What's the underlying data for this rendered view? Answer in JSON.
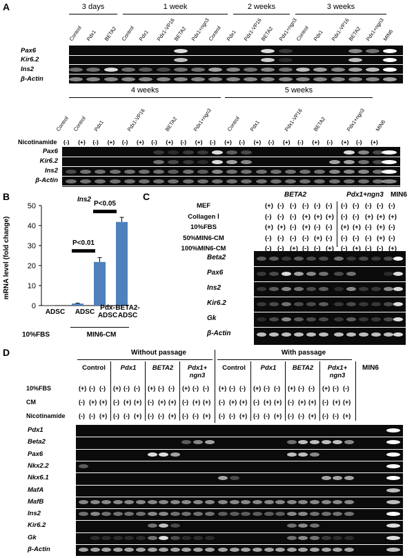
{
  "panelA": {
    "label": "A",
    "top": {
      "groups": [
        "3 days",
        "1 week",
        "2 weeks",
        "3 weeks"
      ],
      "lanes": [
        "Control",
        "Pdx1",
        "BETA2",
        "Control",
        "Pdx1",
        "Pdx1-VP16",
        "BETA2",
        "Pdx1+ngn3",
        "Control",
        "Pdx1",
        "Pdx1-VP16",
        "BETA2",
        "Pdx1+ngn3",
        "Control",
        "Pdx1",
        "Pdx1-VP16",
        "BETA2",
        "Pdx1+ngn3",
        "MIN6"
      ],
      "genes": [
        "Pax6",
        "Kir6.2",
        "Ins2",
        "β-Actin"
      ]
    },
    "bottom": {
      "groups": [
        "4 weeks",
        "5 weeks"
      ],
      "lanes": [
        "Control",
        "Control",
        "Pdx1",
        "Pdx1-VP16",
        "BETA2",
        "Pdx1+ngn3",
        "Control",
        "Pdx1",
        "Pdx1-VP16",
        "BETA2",
        "Pdx1+ngn3",
        "MIN6"
      ],
      "nicotinamide_label": "Nicotinamide",
      "nicotinamide": [
        "(-)",
        "(+)",
        "(-)",
        "(+)",
        "(-)",
        "(+)",
        "(-)",
        "(+)",
        "(-)",
        "(+)",
        "(-)",
        "(+)",
        "(-)",
        "(+)",
        "(-)",
        "(+)",
        "(-)",
        "(+)",
        "(-)",
        "(+)",
        "(-)",
        "(+)"
      ],
      "genes": [
        "Pax6",
        "Kir6.2",
        "Ins2",
        "β-Actin"
      ]
    }
  },
  "panelB": {
    "label": "B",
    "chart_data": {
      "type": "bar",
      "title": "Ins2",
      "ylabel": "mRNA level (fold change)",
      "categories": [
        "ADSC",
        "ADSC",
        "Pdx-ADSC",
        "BETA2-ADSC"
      ],
      "values": [
        0.1,
        1.0,
        21.8,
        41.8
      ],
      "errors": [
        0,
        0.2,
        2.2,
        2.3
      ],
      "ylim": [
        0,
        50
      ],
      "yticks": [
        "0",
        "10",
        "20",
        "30",
        "40",
        "50"
      ],
      "condition_labels": [
        "10%FBS",
        "MIN6-CM"
      ],
      "annotations": [
        "P<0.01",
        "P<0.05"
      ],
      "bar_color": "#4f81bd"
    }
  },
  "panelC": {
    "label": "C",
    "groups": [
      "BETA2",
      "Pdx1+ngn3",
      "MIN6"
    ],
    "rows": [
      {
        "label": "MEF",
        "signs": [
          "(+)",
          "(-)",
          "(-)",
          "(-)",
          "(-)",
          "(-)",
          "(-)",
          "(-)",
          "(-)",
          "(-)",
          "(-)",
          "(-)"
        ]
      },
      {
        "label": "Collagen Ⅰ",
        "signs": [
          "(-)",
          "(-)",
          "(-)",
          "(+)",
          "(+)",
          "(+)",
          "(-)",
          "(-)",
          "(+)",
          "(+)",
          "(+)",
          "(-)"
        ]
      },
      {
        "label": "10%FBS",
        "signs": [
          "(+)",
          "(+)",
          "(-)",
          "(+)",
          "(-)",
          "(-)",
          "(+)",
          "(+)",
          "(-)",
          "(+)",
          "(-)",
          "(-)"
        ]
      },
      {
        "label": "50%MIN6-CM",
        "signs": [
          "(-)",
          "(-)",
          "(-)",
          "(-)",
          "(+)",
          "(-)",
          "(-)",
          "(-)",
          "(-)",
          "(+)",
          "(-)",
          "(-)"
        ]
      },
      {
        "label": "100%MIN6-CM",
        "signs": [
          "(-)",
          "(-)",
          "(+)",
          "(-)",
          "(-)",
          "(+)",
          "(-)",
          "(+)",
          "(-)",
          "(-)",
          "(+)",
          "(-)"
        ]
      }
    ],
    "genes": [
      "Beta2",
      "Pax6",
      "Ins2",
      "Kir6.2",
      "Gk",
      "β-Actin"
    ]
  },
  "panelD": {
    "label": "D",
    "sections": [
      "Without passage",
      "With passage"
    ],
    "groups": [
      "Control",
      "Pdx1",
      "BETA2",
      "Pdx1+ ngn3",
      "Control",
      "Pdx1",
      "BETA2",
      "Pdx1+ ngn3"
    ],
    "min6": "MIN6",
    "rows": [
      {
        "label": "10%FBS",
        "sign_a": "(+)",
        "sign_b": "(-)",
        "sign_c": "(-)"
      },
      {
        "label": "CM",
        "sign_a": "(-)",
        "sign_b": "(+)",
        "sign_c": "(+)"
      },
      {
        "label": "Nicotinamide",
        "sign_a": "(-)",
        "sign_b": "(-)",
        "sign_c": "(+)"
      }
    ],
    "genes": [
      "Pdx1",
      "Beta2",
      "Pax6",
      "Nkx2.2",
      "Nkx6.1",
      "MafA",
      "MafB",
      "Ins2",
      "Kir6.2",
      "Gk",
      "β-Actin"
    ]
  }
}
